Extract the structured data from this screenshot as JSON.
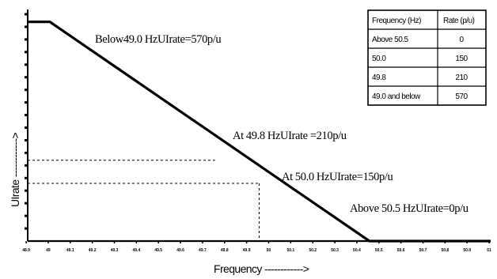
{
  "chart_data": {
    "type": "line",
    "title": "",
    "xlabel": "Frequency ------------>",
    "ylabel": "UIrate ------------>",
    "xlim": [
      48.95,
      51.05
    ],
    "ylim": [
      0,
      600
    ],
    "x_ticks": [
      "48.9",
      "49",
      "49.1",
      "49.2",
      "49.3",
      "49.4",
      "49.5",
      "49.6",
      "49.7",
      "49.8",
      "49.9",
      "50",
      "50.1",
      "50.2",
      "50.3",
      "50.4",
      "50.5",
      "50.6",
      "50.7",
      "50.8",
      "50.9",
      "51"
    ],
    "y_tick_count": 18,
    "series": [
      {
        "x": [
          48.95,
          49.05,
          50.5,
          51.05
        ],
        "y": [
          570,
          570,
          0,
          0
        ]
      }
    ],
    "reference_lines": [
      {
        "x": 49.8,
        "y": 210
      },
      {
        "x": 50.0,
        "y": 150
      }
    ],
    "annotations": [
      {
        "text": "Below49.0 HzUIrate=570p/u",
        "x": 49.2,
        "y": 570
      },
      {
        "text": "At 49.8 HzUIrate =210p/u",
        "x": 49.9,
        "y": 300
      },
      {
        "text": "At 50.0 HzUIrate=150p/u",
        "x": 50.05,
        "y": 175
      },
      {
        "text": "Above 50.5 HzUIrate=0p/u",
        "x": 50.5,
        "y": 85
      }
    ],
    "grid": false,
    "legend": "none"
  },
  "table": {
    "headers": [
      "Frequency (Hz)",
      "Rate (p/u)"
    ],
    "rows": [
      [
        "Above 50.5",
        "0"
      ],
      [
        "50.0",
        "150"
      ],
      [
        "49.8",
        "210"
      ],
      [
        "49.0 and below",
        "570"
      ]
    ]
  }
}
